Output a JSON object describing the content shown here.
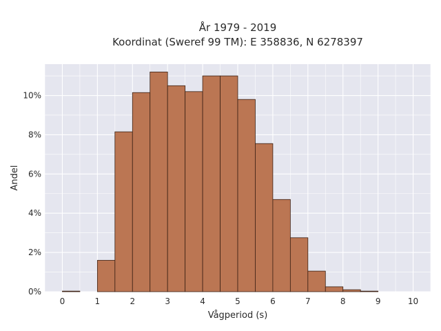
{
  "chart_data": {
    "type": "bar",
    "title": "År 1979 - 2019",
    "subtitle": "Koordinat (Sweref 99 TM): E 358836, N 6278397",
    "xlabel": "Vågperiod (s)",
    "ylabel": "Andel",
    "bin_width": 0.5,
    "x_start": [
      0,
      0.5,
      1,
      1.5,
      2,
      2.5,
      3,
      3.5,
      4,
      4.5,
      5,
      5.5,
      6,
      6.5,
      7,
      7.5,
      8,
      8.5,
      9,
      9.5
    ],
    "values": [
      0.03,
      0,
      1.6,
      8.15,
      10.15,
      11.2,
      10.5,
      10.2,
      11.0,
      11.0,
      9.8,
      7.55,
      4.7,
      2.75,
      1.05,
      0.25,
      0.1,
      0.03,
      0,
      0
    ],
    "xlim": [
      -0.5,
      10.5
    ],
    "ylim": [
      0,
      11.6
    ],
    "xticks": [
      "0",
      "1",
      "2",
      "3",
      "4",
      "5",
      "6",
      "7",
      "8",
      "9",
      "10"
    ],
    "yticks": [
      "0%",
      "2%",
      "4%",
      "6%",
      "8%",
      "10%"
    ],
    "ytick_values": [
      0,
      2,
      4,
      6,
      8,
      10
    ],
    "grid": true,
    "colors": {
      "bar_fill": "#bb7653",
      "bar_edge": "#3a2014",
      "plot_background": "#e5e6ef",
      "grid": "#ffffff"
    }
  }
}
